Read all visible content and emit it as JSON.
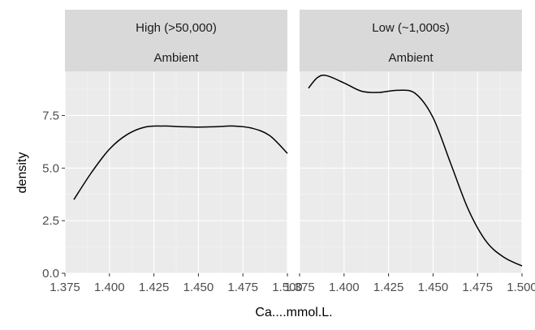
{
  "chart_data": {
    "type": "line",
    "kind": "density",
    "facet_layout": "two panels side by side, two-row strip headers",
    "xlabel": "Ca....mmol.L.",
    "ylabel": "density",
    "xlim": [
      1.375,
      1.5
    ],
    "ylim": [
      0,
      9.6
    ],
    "x_ticks": [
      1.375,
      1.4,
      1.425,
      1.45,
      1.475,
      1.5
    ],
    "x_tick_labels": [
      "1.375",
      "1.400",
      "1.425",
      "1.450",
      "1.475",
      "1.500"
    ],
    "y_ticks": [
      0,
      2.5,
      5,
      7.5
    ],
    "y_tick_labels": [
      "0.0",
      "2.5",
      "5.0",
      "7.5"
    ],
    "grid": true,
    "colors": {
      "panel_bg": "#EBEBEB",
      "strip_bg": "#D9D9D9",
      "grid_major": "#FFFFFF",
      "line": "#000000",
      "text": "#1A1A1A",
      "tick_text": "#4D4D4D"
    },
    "panels": [
      {
        "strip": [
          "High (>50,000)",
          "Ambient"
        ],
        "series": [
          {
            "x": [
              1.38,
              1.39,
              1.4,
              1.41,
              1.42,
              1.43,
              1.44,
              1.45,
              1.46,
              1.47,
              1.48,
              1.49,
              1.5
            ],
            "y": [
              3.5,
              4.8,
              5.9,
              6.6,
              6.95,
              7.0,
              6.97,
              6.95,
              6.97,
              7.0,
              6.9,
              6.55,
              5.7
            ]
          }
        ]
      },
      {
        "strip": [
          "Low (~1,000s)",
          "Ambient"
        ],
        "series": [
          {
            "x": [
              1.38,
              1.385,
              1.39,
              1.4,
              1.41,
              1.42,
              1.43,
              1.44,
              1.45,
              1.46,
              1.47,
              1.48,
              1.49,
              1.5
            ],
            "y": [
              8.8,
              9.3,
              9.4,
              9.05,
              8.65,
              8.6,
              8.7,
              8.55,
              7.4,
              5.2,
              3.0,
              1.5,
              0.75,
              0.35
            ]
          }
        ]
      }
    ]
  }
}
